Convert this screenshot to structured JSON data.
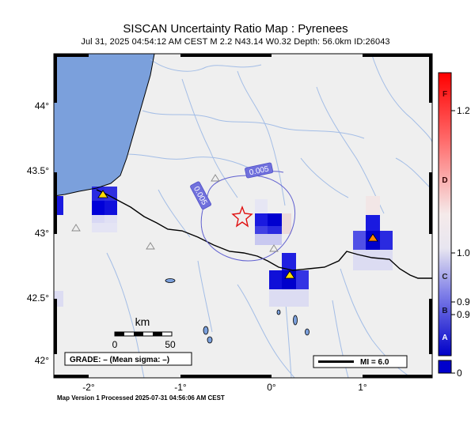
{
  "header": {
    "title": "SISCAN Uncertainty Ratio Map : Pyrenees",
    "subtitle": "Jul 31, 2025 04:54:12 AM CEST   M 2.2   N43.14 W0.32   Depth: 56.0km   ID:26043"
  },
  "axes": {
    "lat_labels": [
      {
        "text": "44°"
      },
      {
        "text": "43.5°"
      },
      {
        "text": "43°"
      },
      {
        "text": "42.5°"
      },
      {
        "text": "42°"
      }
    ],
    "lon_labels": [
      {
        "text": "-2°"
      },
      {
        "text": "-1°"
      },
      {
        "text": "0°"
      },
      {
        "text": "1°"
      }
    ]
  },
  "contours": [
    {
      "label": "0.005"
    },
    {
      "label": "0.005"
    }
  ],
  "scale_bar": {
    "unit": "km",
    "tick0": "0",
    "tick1": "50"
  },
  "grade_box": {
    "text": "GRADE: – (Mean sigma: –)"
  },
  "mi_legend": {
    "text": "MI = 6.0"
  },
  "colorbar": {
    "letters": [
      {
        "text": "F"
      },
      {
        "text": "D"
      },
      {
        "text": "C"
      },
      {
        "text": "B"
      },
      {
        "text": "A"
      }
    ],
    "tick_labels": [
      {
        "text": "1.2"
      },
      {
        "text": "1.0"
      },
      {
        "text": "0.9"
      },
      {
        "text": "0.9"
      },
      {
        "text": "0"
      }
    ],
    "colors": {
      "top": "#ff0000",
      "mid": "#f5f0f0",
      "bottom": "#0000c8",
      "nodata": "#0000cc"
    }
  },
  "colors": {
    "land": "#efefef",
    "sea": "#7ba0dc",
    "river": "#9bb8e6",
    "epicenter": "#e01010",
    "station_yellow": "#ffdd00",
    "station_orange": "#ff8800",
    "contour": "#6060d0"
  },
  "footer": {
    "text": "Map Version 1 Processed 2025-07-31 04:56:06 AM CEST"
  }
}
